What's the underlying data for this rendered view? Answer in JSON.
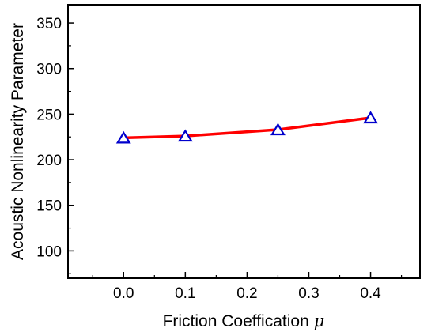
{
  "chart_data": {
    "type": "line",
    "xlabel": "Friction Coeffication",
    "xlabel_symbol": "μ",
    "ylabel": "Acoustic Nonlinearity Parameter",
    "xlim": [
      -0.09,
      0.48
    ],
    "ylim": [
      70,
      370
    ],
    "x_ticks": [
      0.0,
      0.1,
      0.2,
      0.3,
      0.4
    ],
    "x_tick_labels": [
      "0.0",
      "0.1",
      "0.2",
      "0.3",
      "0.4"
    ],
    "y_ticks": [
      100,
      150,
      200,
      250,
      300,
      350
    ],
    "y_tick_labels": [
      "100",
      "150",
      "200",
      "250",
      "300",
      "350"
    ],
    "grid": false,
    "series": [
      {
        "x": [
          0.0,
          0.1,
          0.25,
          0.4
        ],
        "y": [
          224,
          226,
          233,
          246
        ],
        "line_color": "#ff0000",
        "marker": "open-triangle",
        "marker_color": "#0000cc"
      }
    ]
  }
}
